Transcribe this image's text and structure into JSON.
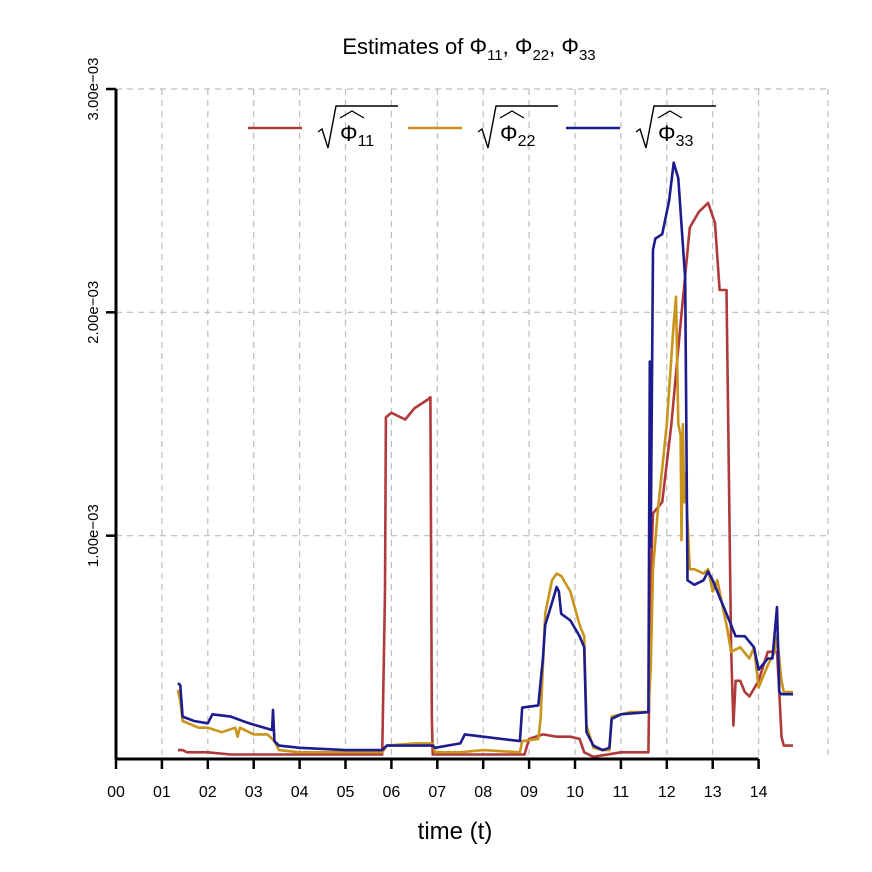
{
  "chart_data": {
    "type": "line",
    "title": "Estimates of Φ11, Φ22, Φ33",
    "title_parts": {
      "prefix": "Estimates of ",
      "sym": "Φ",
      "s1": "11",
      "s2": "22",
      "s3": "33",
      "sep": ", "
    },
    "xlabel": "time (t)",
    "ylabel": "",
    "xlim": [
      0,
      14.75
    ],
    "ylim": [
      0,
      0.003
    ],
    "x_ticks": [
      "00",
      "01",
      "02",
      "03",
      "04",
      "05",
      "06",
      "07",
      "08",
      "09",
      "10",
      "11",
      "12",
      "13",
      "14"
    ],
    "y_ticks": [
      {
        "value": 0.001,
        "label": "1.00e−03"
      },
      {
        "value": 0.002,
        "label": "2.00e−03"
      },
      {
        "value": 0.003,
        "label": "3.00e−03"
      }
    ],
    "grid": true,
    "legend_position": "top",
    "series": [
      {
        "name": "√Φ11",
        "legend_sub": "11",
        "color": "#b03a3a",
        "points": [
          [
            1.35,
            4e-05
          ],
          [
            1.45,
            4e-05
          ],
          [
            1.55,
            3e-05
          ],
          [
            2.0,
            3e-05
          ],
          [
            2.5,
            2e-05
          ],
          [
            3.5,
            2e-05
          ],
          [
            4.0,
            2e-05
          ],
          [
            5.0,
            2e-05
          ],
          [
            5.8,
            2e-05
          ],
          [
            5.86,
            0.00075
          ],
          [
            5.88,
            0.00153
          ],
          [
            6.0,
            0.00155
          ],
          [
            6.3,
            0.00152
          ],
          [
            6.5,
            0.00157
          ],
          [
            6.8,
            0.00161
          ],
          [
            6.85,
            0.00162
          ],
          [
            6.88,
            0.0002
          ],
          [
            6.9,
            2e-05
          ],
          [
            7.5,
            2e-05
          ],
          [
            8.5,
            2e-05
          ],
          [
            8.9,
            2e-05
          ],
          [
            9.0,
            9e-05
          ],
          [
            9.3,
            0.00011
          ],
          [
            9.6,
            0.0001
          ],
          [
            9.9,
            0.0001
          ],
          [
            10.1,
            9e-05
          ],
          [
            10.2,
            3e-05
          ],
          [
            10.4,
            1e-05
          ],
          [
            11.0,
            3e-05
          ],
          [
            11.6,
            3e-05
          ],
          [
            11.65,
            0.0008
          ],
          [
            11.7,
            0.0011
          ],
          [
            11.9,
            0.00115
          ],
          [
            12.1,
            0.0015
          ],
          [
            12.3,
            0.00195
          ],
          [
            12.5,
            0.00238
          ],
          [
            12.7,
            0.00245
          ],
          [
            12.9,
            0.00249
          ],
          [
            13.05,
            0.0024
          ],
          [
            13.15,
            0.0021
          ],
          [
            13.3,
            0.0021
          ],
          [
            13.4,
            0.0005
          ],
          [
            13.45,
            0.00015
          ],
          [
            13.5,
            0.00035
          ],
          [
            13.6,
            0.00035
          ],
          [
            13.7,
            0.0003
          ],
          [
            13.8,
            0.00028
          ],
          [
            14.0,
            0.00035
          ],
          [
            14.2,
            0.00048
          ],
          [
            14.4,
            0.00048
          ],
          [
            14.45,
            0.0003
          ],
          [
            14.5,
            0.0001
          ],
          [
            14.55,
            6e-05
          ],
          [
            14.75,
            6e-05
          ]
        ]
      },
      {
        "name": "√Φ22",
        "legend_sub": "22",
        "color": "#c8941c",
        "points": [
          [
            1.35,
            0.00031
          ],
          [
            1.4,
            0.00026
          ],
          [
            1.45,
            0.00017
          ],
          [
            1.8,
            0.00014
          ],
          [
            2.0,
            0.00014
          ],
          [
            2.3,
            0.00012
          ],
          [
            2.6,
            0.00014
          ],
          [
            2.65,
            0.0001
          ],
          [
            2.7,
            0.00014
          ],
          [
            3.0,
            0.00011
          ],
          [
            3.3,
            0.00011
          ],
          [
            3.45,
            8e-05
          ],
          [
            3.55,
            4e-05
          ],
          [
            4.0,
            3e-05
          ],
          [
            5.0,
            3e-05
          ],
          [
            5.8,
            3e-05
          ],
          [
            5.9,
            6e-05
          ],
          [
            6.5,
            7e-05
          ],
          [
            6.9,
            7e-05
          ],
          [
            6.95,
            3e-05
          ],
          [
            7.5,
            3e-05
          ],
          [
            8.0,
            4e-05
          ],
          [
            8.8,
            3e-05
          ],
          [
            8.85,
            8e-05
          ],
          [
            9.2,
            9e-05
          ],
          [
            9.25,
            0.00018
          ],
          [
            9.35,
            0.00065
          ],
          [
            9.5,
            0.0008
          ],
          [
            9.6,
            0.00083
          ],
          [
            9.7,
            0.00082
          ],
          [
            9.9,
            0.00075
          ],
          [
            10.1,
            0.0006
          ],
          [
            10.2,
            0.00055
          ],
          [
            10.25,
            0.00015
          ],
          [
            10.4,
            5e-05
          ],
          [
            10.6,
            4e-05
          ],
          [
            10.75,
            4e-05
          ],
          [
            10.8,
            0.00019
          ],
          [
            11.2,
            0.00021
          ],
          [
            11.6,
            0.00021
          ],
          [
            11.65,
            0.0004
          ],
          [
            11.7,
            0.00085
          ],
          [
            11.8,
            0.0011
          ],
          [
            12.0,
            0.0015
          ],
          [
            12.1,
            0.0018
          ],
          [
            12.15,
            0.00195
          ],
          [
            12.2,
            0.00207
          ],
          [
            12.25,
            0.0015
          ],
          [
            12.3,
            0.00145
          ],
          [
            12.32,
            0.00098
          ],
          [
            12.35,
            0.0015
          ],
          [
            12.38,
            0.00115
          ],
          [
            12.4,
            0.00128
          ],
          [
            12.5,
            0.00085
          ],
          [
            12.6,
            0.00085
          ],
          [
            12.8,
            0.00083
          ],
          [
            12.9,
            0.00085
          ],
          [
            13.0,
            0.00075
          ],
          [
            13.1,
            0.0008
          ],
          [
            13.3,
            0.0006
          ],
          [
            13.4,
            0.00048
          ],
          [
            13.6,
            0.0005
          ],
          [
            13.8,
            0.00045
          ],
          [
            13.9,
            0.0005
          ],
          [
            14.0,
            0.00032
          ],
          [
            14.2,
            0.00042
          ],
          [
            14.35,
            0.00048
          ],
          [
            14.4,
            0.00055
          ],
          [
            14.5,
            0.00035
          ],
          [
            14.55,
            0.0003
          ],
          [
            14.75,
            0.0003
          ]
        ]
      },
      {
        "name": "√Φ33",
        "legend_sub": "33",
        "color": "#1c1c8f",
        "points": [
          [
            1.35,
            0.00034
          ],
          [
            1.4,
            0.00033
          ],
          [
            1.45,
            0.00019
          ],
          [
            1.7,
            0.00017
          ],
          [
            2.0,
            0.00016
          ],
          [
            2.1,
            0.0002
          ],
          [
            2.5,
            0.00019
          ],
          [
            2.9,
            0.00016
          ],
          [
            3.4,
            0.00013
          ],
          [
            3.42,
            0.00022
          ],
          [
            3.45,
            8e-05
          ],
          [
            3.55,
            6e-05
          ],
          [
            4.0,
            5e-05
          ],
          [
            5.0,
            4e-05
          ],
          [
            5.8,
            4e-05
          ],
          [
            5.9,
            6e-05
          ],
          [
            6.5,
            6e-05
          ],
          [
            6.9,
            6e-05
          ],
          [
            6.95,
            5e-05
          ],
          [
            7.5,
            7e-05
          ],
          [
            7.6,
            0.00011
          ],
          [
            8.0,
            0.0001
          ],
          [
            8.8,
            8e-05
          ],
          [
            8.85,
            0.00023
          ],
          [
            9.2,
            0.00024
          ],
          [
            9.3,
            0.00045
          ],
          [
            9.35,
            0.0006
          ],
          [
            9.5,
            0.0007
          ],
          [
            9.6,
            0.00077
          ],
          [
            9.65,
            0.00075
          ],
          [
            9.7,
            0.00065
          ],
          [
            9.9,
            0.00062
          ],
          [
            10.1,
            0.00055
          ],
          [
            10.2,
            0.0005
          ],
          [
            10.25,
            0.00012
          ],
          [
            10.4,
            6e-05
          ],
          [
            10.6,
            4e-05
          ],
          [
            10.75,
            5e-05
          ],
          [
            10.8,
            0.00018
          ],
          [
            11.0,
            0.0002
          ],
          [
            11.6,
            0.00021
          ],
          [
            11.63,
            0.00178
          ],
          [
            11.65,
            0.00095
          ],
          [
            11.7,
            0.00228
          ],
          [
            11.75,
            0.00233
          ],
          [
            11.9,
            0.00235
          ],
          [
            12.05,
            0.0025
          ],
          [
            12.15,
            0.00267
          ],
          [
            12.25,
            0.0026
          ],
          [
            12.3,
            0.00245
          ],
          [
            12.4,
            0.00215
          ],
          [
            12.45,
            0.0008
          ],
          [
            12.6,
            0.00078
          ],
          [
            12.8,
            0.0008
          ],
          [
            12.9,
            0.00084
          ],
          [
            13.0,
            0.0008
          ],
          [
            13.2,
            0.0007
          ],
          [
            13.3,
            0.00065
          ],
          [
            13.4,
            0.0006
          ],
          [
            13.5,
            0.00055
          ],
          [
            13.7,
            0.00055
          ],
          [
            13.9,
            0.0005
          ],
          [
            14.0,
            0.0004
          ],
          [
            14.2,
            0.00045
          ],
          [
            14.3,
            0.00045
          ],
          [
            14.4,
            0.00068
          ],
          [
            14.45,
            0.0003
          ],
          [
            14.5,
            0.00029
          ],
          [
            14.75,
            0.00029
          ]
        ]
      }
    ]
  }
}
